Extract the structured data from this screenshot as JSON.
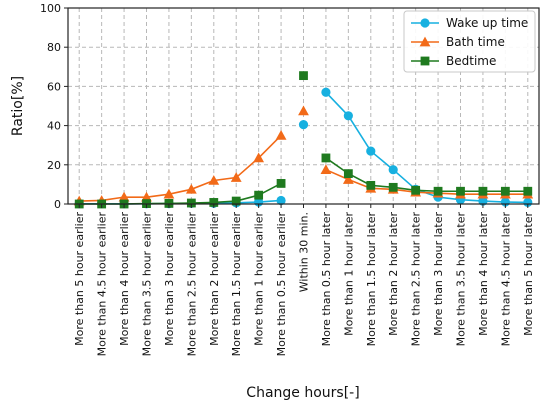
{
  "chart_data": {
    "type": "line",
    "xlabel": "Change hours[-]",
    "ylabel": "Ratio[%]",
    "ylim": [
      0,
      100
    ],
    "yticks": [
      0,
      20,
      40,
      60,
      80,
      100
    ],
    "grid": true,
    "legend_position": "top-right",
    "categories": [
      "More than 5 hour earlier",
      "More than 4.5 hour earlier",
      "More than 4 hour earlier",
      "More than 3.5 hour earlier",
      "More than 3 hour earlier",
      "More than 2.5 hour earlier",
      "More than 2 hour earlier",
      "More than 1.5 hour earlier",
      "More than 1 hour earlier",
      "More than 0.5 hour earlier",
      "Within 30 min.",
      "More than 0.5 hour later",
      "More than 1 hour later",
      "More than 1.5 hour later",
      "More than 2 hour later",
      "More than 2.5 hour later",
      "More than 3 hour later",
      "More than 3.5 hour later",
      "More than 4 hour later",
      "More than 4.5 hour later",
      "More than 5 hour later"
    ],
    "series": [
      {
        "name": "Wake up time",
        "color": "#17b0e0",
        "marker": "circle",
        "segments": [
          {
            "start": 0,
            "values": [
              0.1,
              0.1,
              0.1,
              0.1,
              0.2,
              0.3,
              0.4,
              0.6,
              1.0,
              1.8
            ]
          },
          {
            "start": 10,
            "values": [
              40.5
            ]
          },
          {
            "start": 11,
            "values": [
              57.0,
              45.0,
              27.0,
              17.5,
              7.5,
              3.5,
              2.2,
              1.5,
              1.0,
              0.8
            ]
          }
        ]
      },
      {
        "name": "Bath time",
        "color": "#f26a18",
        "marker": "triangle",
        "segments": [
          {
            "start": 0,
            "values": [
              1.5,
              1.8,
              3.5,
              3.5,
              5.0,
              7.5,
              12.0,
              13.5,
              23.5,
              35.0
            ]
          },
          {
            "start": 10,
            "values": [
              47.5
            ]
          },
          {
            "start": 11,
            "values": [
              17.5,
              12.5,
              8.0,
              7.5,
              6.0,
              5.5,
              5.0,
              5.0,
              5.0,
              5.0
            ]
          }
        ]
      },
      {
        "name": "Bedtime",
        "color": "#1f7a1f",
        "marker": "square",
        "segments": [
          {
            "start": 0,
            "values": [
              0.0,
              0.0,
              0.0,
              0.2,
              0.3,
              0.5,
              0.8,
              1.5,
              4.5,
              10.5
            ]
          },
          {
            "start": 10,
            "values": [
              65.5
            ]
          },
          {
            "start": 11,
            "values": [
              23.5,
              15.5,
              9.5,
              8.5,
              7.0,
              6.5,
              6.5,
              6.5,
              6.5,
              6.5
            ]
          }
        ]
      }
    ]
  }
}
